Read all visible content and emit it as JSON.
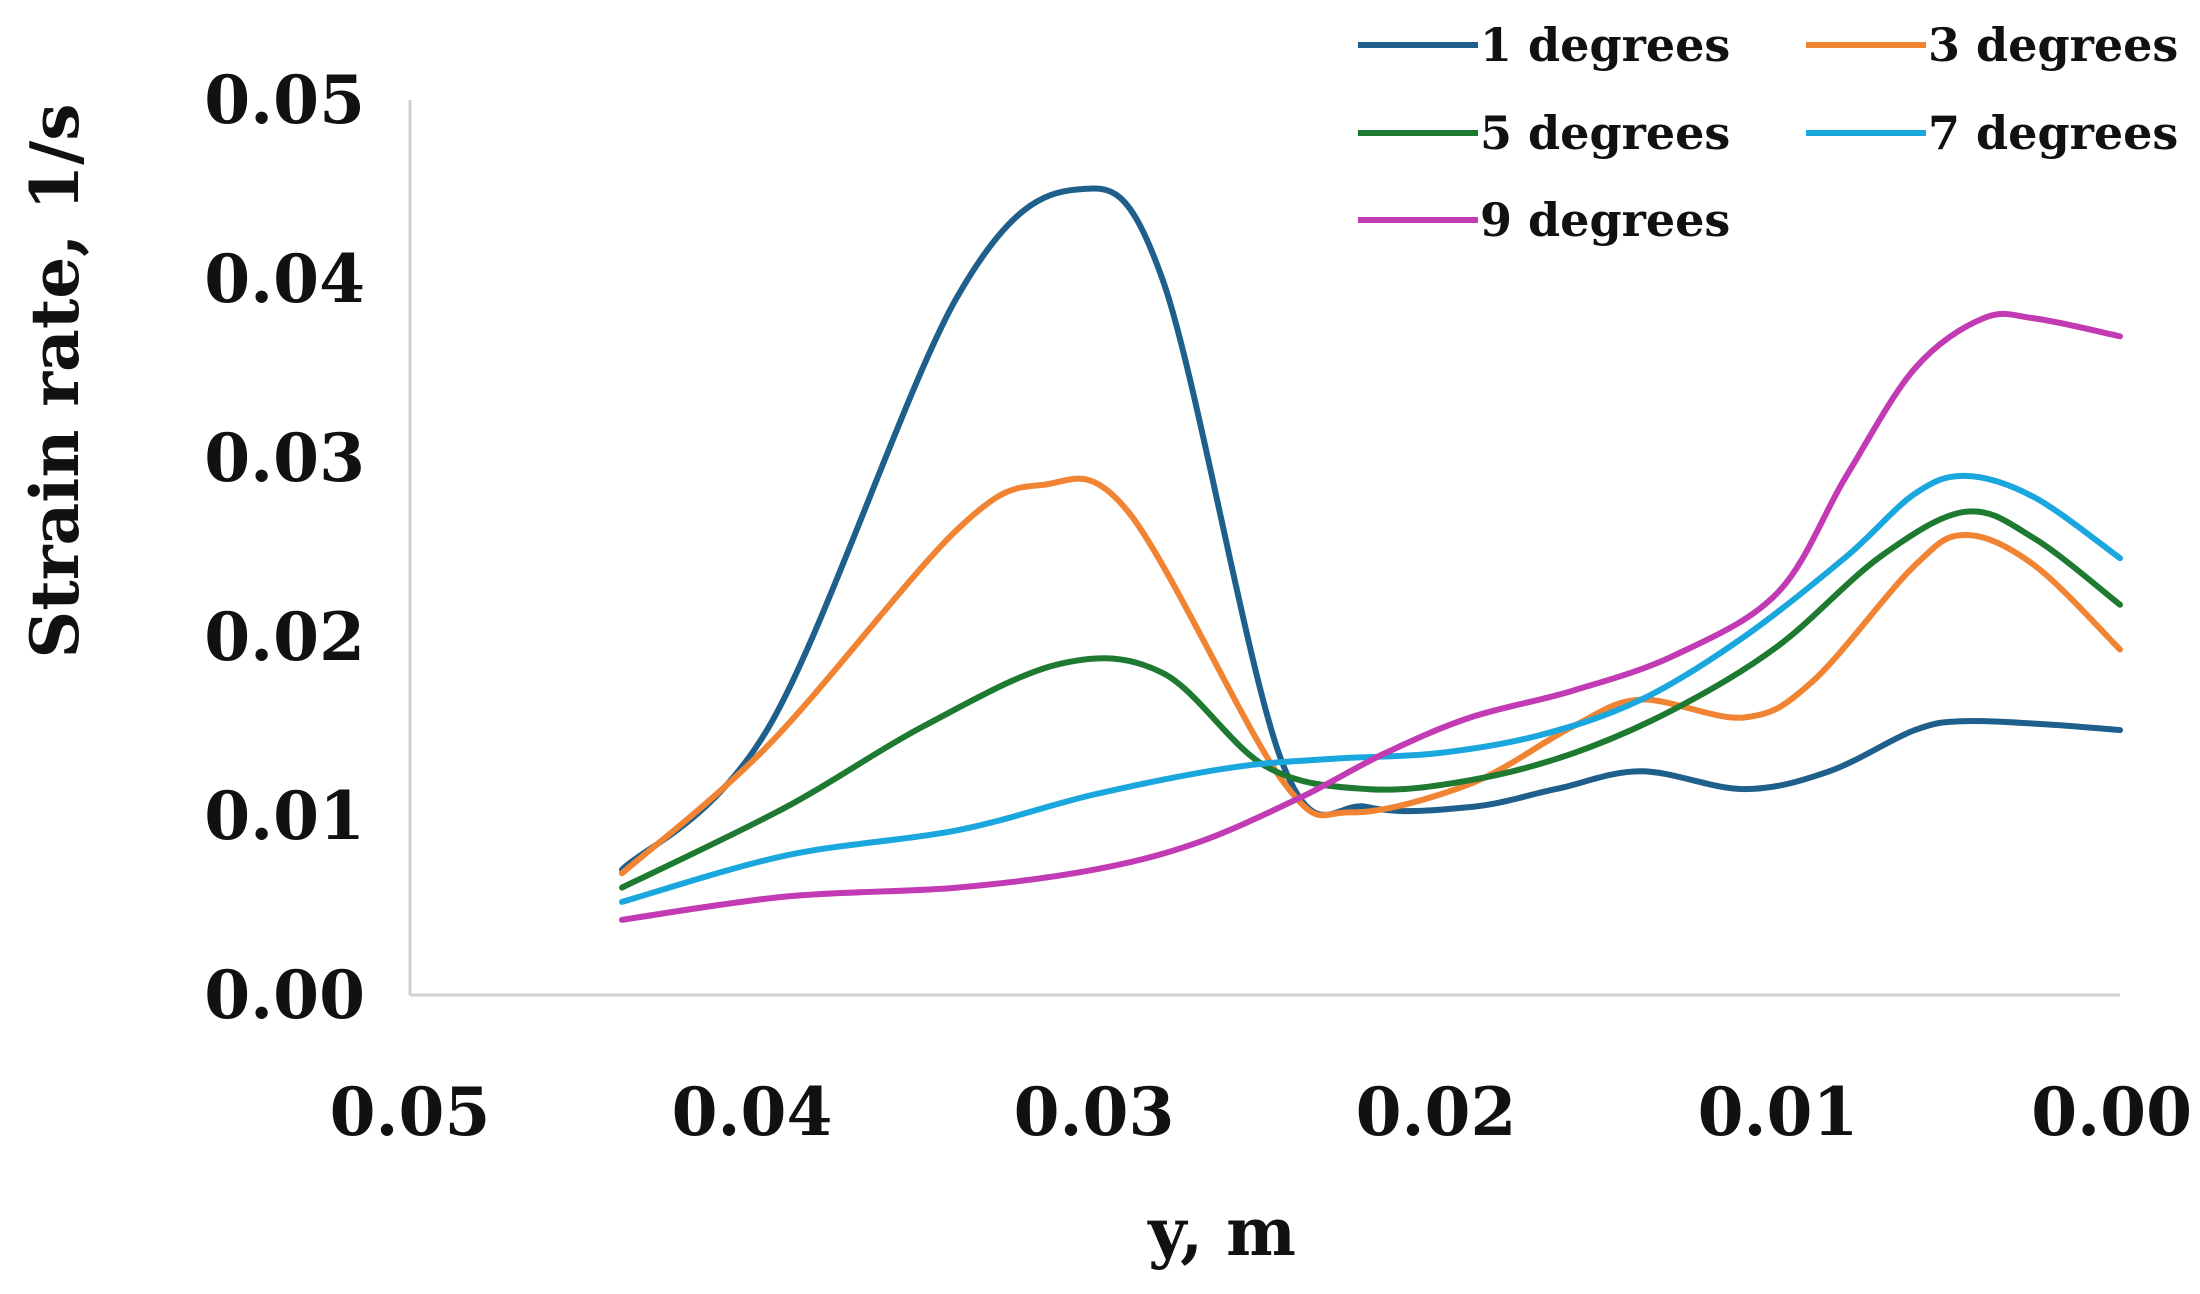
{
  "chart_data": {
    "type": "line",
    "title": "",
    "xlabel": "y, m",
    "ylabel": "Strain rate, 1/s",
    "xlim": [
      0.05,
      0.0
    ],
    "ylim": [
      0.0,
      0.05
    ],
    "xticks": [
      "0.05",
      "0.04",
      "0.03",
      "0.02",
      "0.01",
      "0.00"
    ],
    "yticks": [
      "0.00",
      "0.01",
      "0.02",
      "0.03",
      "0.04",
      "0.05"
    ],
    "x_reversed": true,
    "grid": false,
    "legend_position": "top-right",
    "series": [
      {
        "name": "1 degrees",
        "color": "#1f5f8b",
        "x": [
          0.0438,
          0.0395,
          0.034,
          0.0305,
          0.028,
          0.0245,
          0.022,
          0.019,
          0.0165,
          0.014,
          0.011,
          0.0085,
          0.006,
          0.0045,
          0.002,
          0.0
        ],
        "y": [
          0.007,
          0.015,
          0.039,
          0.045,
          0.04,
          0.013,
          0.0105,
          0.0105,
          0.0115,
          0.0125,
          0.0115,
          0.0125,
          0.0148,
          0.0153,
          0.0151,
          0.0148
        ]
      },
      {
        "name": "3 degrees",
        "color": "#f08433",
        "x": [
          0.0438,
          0.0395,
          0.034,
          0.0315,
          0.029,
          0.0245,
          0.0225,
          0.019,
          0.016,
          0.014,
          0.011,
          0.009,
          0.006,
          0.0045,
          0.0025,
          0.0
        ],
        "y": [
          0.0068,
          0.014,
          0.026,
          0.0285,
          0.027,
          0.012,
          0.0102,
          0.0118,
          0.015,
          0.0165,
          0.0155,
          0.0175,
          0.024,
          0.0257,
          0.024,
          0.0193
        ]
      },
      {
        "name": "5 degrees",
        "color": "#1e7a31",
        "x": [
          0.0438,
          0.039,
          0.035,
          0.031,
          0.028,
          0.025,
          0.022,
          0.019,
          0.016,
          0.013,
          0.01,
          0.007,
          0.0045,
          0.0025,
          0.0
        ],
        "y": [
          0.006,
          0.0105,
          0.015,
          0.0185,
          0.018,
          0.0128,
          0.0115,
          0.012,
          0.0135,
          0.016,
          0.0195,
          0.0245,
          0.027,
          0.0255,
          0.0218
        ]
      },
      {
        "name": "7 degrees",
        "color": "#1aa7dd",
        "x": [
          0.0438,
          0.039,
          0.034,
          0.03,
          0.026,
          0.023,
          0.02,
          0.017,
          0.014,
          0.011,
          0.008,
          0.006,
          0.0045,
          0.0025,
          0.0
        ],
        "y": [
          0.0052,
          0.0078,
          0.0092,
          0.0112,
          0.0127,
          0.0132,
          0.0135,
          0.0145,
          0.0165,
          0.02,
          0.0245,
          0.028,
          0.029,
          0.0278,
          0.0244
        ]
      },
      {
        "name": "9 degrees",
        "color": "#c23bb4",
        "x": [
          0.0438,
          0.039,
          0.034,
          0.03,
          0.027,
          0.024,
          0.0215,
          0.019,
          0.016,
          0.013,
          0.01,
          0.008,
          0.006,
          0.004,
          0.0025,
          0.0
        ],
        "y": [
          0.0042,
          0.0055,
          0.006,
          0.007,
          0.0085,
          0.011,
          0.0135,
          0.0155,
          0.017,
          0.019,
          0.0225,
          0.029,
          0.035,
          0.0378,
          0.0378,
          0.0368
        ]
      }
    ]
  }
}
